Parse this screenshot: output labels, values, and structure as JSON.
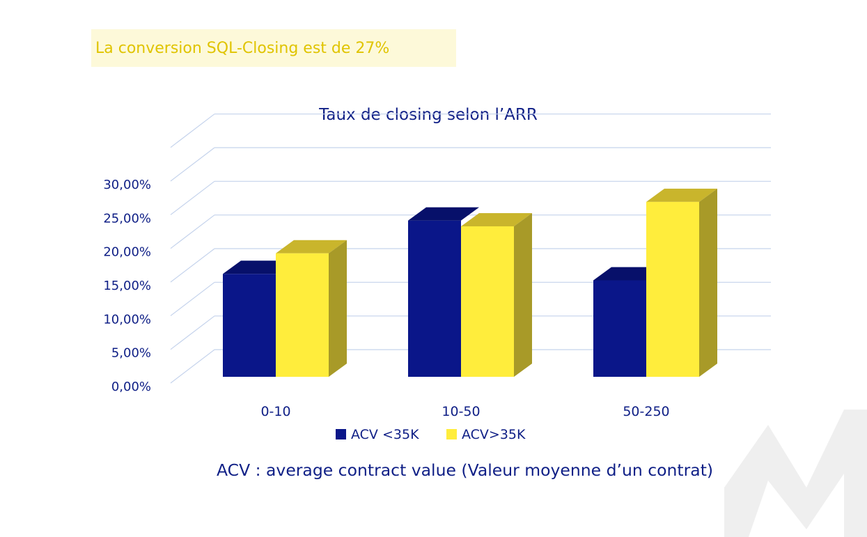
{
  "headline": "La conversion SQL-Closing est de 27%",
  "footnote": "ACV : average contract value (Valeur moyenne d’un contrat)",
  "watermark_letter": "M",
  "colors": {
    "navy": "#0a1689",
    "navy_top": "#07106a",
    "yellow": "#ffed3c",
    "yellow_top": "#c9b52c",
    "yellow_side": "#a89a28",
    "text": "#0f1f86",
    "grid": "#c5d3ec",
    "headline_bg": "#fdf9d9",
    "headline_text": "#e0c400",
    "watermark": "#efefef"
  },
  "chart_data": {
    "type": "bar",
    "title": "Taux de closing selon l’ARR",
    "categories": [
      "0-10",
      "10-50",
      "50-250"
    ],
    "series": [
      {
        "name": "ACV <35K",
        "values": [
          16.0,
          24.3,
          15.0
        ],
        "color": "#0a1689"
      },
      {
        "name": "ACV>35K",
        "values": [
          19.2,
          23.4,
          27.2
        ],
        "color": "#ffed3c"
      }
    ],
    "ylim": [
      0,
      30
    ],
    "yticks": [
      "0,00%",
      "5,00%",
      "10,00%",
      "15,00%",
      "20,00%",
      "25,00%",
      "30,00%"
    ],
    "grid": true,
    "three_d": true,
    "legend_position": "bottom"
  }
}
